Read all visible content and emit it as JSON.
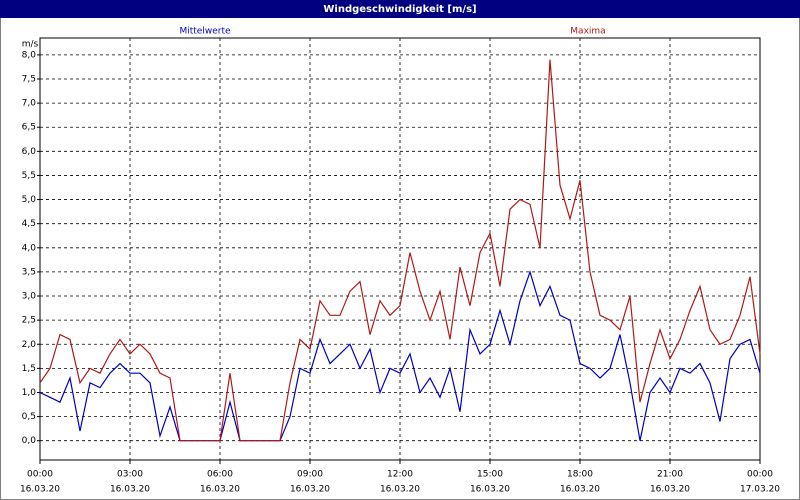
{
  "chart_data": {
    "type": "line",
    "title": "Windgeschwindigkeit [m/s]",
    "y_unit": "m/s",
    "x": [
      0,
      20,
      40,
      60,
      80,
      100,
      120,
      140,
      160,
      180,
      200,
      220,
      240,
      260,
      280,
      300,
      320,
      340,
      360,
      380,
      400,
      420,
      440,
      460,
      480,
      500,
      520,
      540,
      560,
      580,
      600,
      620,
      640,
      660,
      680,
      700,
      720,
      740,
      760,
      780,
      800,
      820,
      840,
      860,
      880,
      900,
      920,
      940,
      960,
      980,
      1000,
      1020,
      1040,
      1060,
      1080,
      1100,
      1120,
      1140,
      1160,
      1180,
      1200,
      1220,
      1240,
      1260,
      1280,
      1300,
      1320,
      1340,
      1360,
      1380,
      1400,
      1420,
      1440
    ],
    "series": [
      {
        "name": "Mittelwerte",
        "color": "#0000c0",
        "values": [
          1.0,
          0.9,
          0.8,
          1.3,
          0.2,
          1.2,
          1.1,
          1.4,
          1.6,
          1.4,
          1.4,
          1.2,
          0.1,
          0.7,
          0,
          0,
          0,
          0,
          0,
          0.8,
          0,
          0,
          0,
          0,
          0,
          0.5,
          1.5,
          1.4,
          2.1,
          1.6,
          1.8,
          2.0,
          1.5,
          1.9,
          1.0,
          1.5,
          1.4,
          1.8,
          1.0,
          1.3,
          0.9,
          1.5,
          0.6,
          2.3,
          1.8,
          2.0,
          2.7,
          2.0,
          2.9,
          3.5,
          2.8,
          3.2,
          2.6,
          2.5,
          1.6,
          1.5,
          1.3,
          1.5,
          2.2,
          1.2,
          0,
          1.0,
          1.3,
          1.0,
          1.5,
          1.4,
          1.6,
          1.2,
          0.4,
          1.7,
          2.0,
          2.1,
          1.4
        ]
      },
      {
        "name": "Maxima",
        "color": "#b01818",
        "values": [
          1.2,
          1.5,
          2.2,
          2.1,
          1.2,
          1.5,
          1.4,
          1.8,
          2.1,
          1.8,
          2.0,
          1.8,
          1.4,
          1.3,
          0,
          0,
          0,
          0,
          0,
          1.4,
          0,
          0,
          0,
          0,
          0,
          1.2,
          2.1,
          1.9,
          2.9,
          2.6,
          2.6,
          3.1,
          3.3,
          2.2,
          2.9,
          2.6,
          2.8,
          3.9,
          3.1,
          2.5,
          3.1,
          2.1,
          3.6,
          2.8,
          3.9,
          4.3,
          3.2,
          4.8,
          5.0,
          4.9,
          4.0,
          7.9,
          5.3,
          4.6,
          5.4,
          3.5,
          2.6,
          2.5,
          2.3,
          3.0,
          0.8,
          1.6,
          2.3,
          1.7,
          2.1,
          2.7,
          3.2,
          2.3,
          2.0,
          2.1,
          2.6,
          3.4,
          1.8
        ]
      }
    ],
    "xlim": [
      0,
      1440
    ],
    "xticks": [
      {
        "value": 0,
        "label": "00:00"
      },
      {
        "value": 180,
        "label": "03:00"
      },
      {
        "value": 360,
        "label": "06:00"
      },
      {
        "value": 540,
        "label": "09:00"
      },
      {
        "value": 720,
        "label": "12:00"
      },
      {
        "value": 900,
        "label": "15:00"
      },
      {
        "value": 1080,
        "label": "18:00"
      },
      {
        "value": 1260,
        "label": "21:00"
      },
      {
        "value": 1440,
        "label": "00:00"
      }
    ],
    "xtick_dates": [
      "16.03.20",
      "16.03.20",
      "16.03.20",
      "16.03.20",
      "16.03.20",
      "16.03.20",
      "16.03.20",
      "16.03.20",
      "17.03.20"
    ],
    "ylim": [
      -0.4,
      8.35
    ],
    "yticks": [
      {
        "value": 0,
        "label": "0,0"
      },
      {
        "value": 0.5,
        "label": "0,5"
      },
      {
        "value": 1,
        "label": "1,0"
      },
      {
        "value": 1.5,
        "label": "1,5"
      },
      {
        "value": 2,
        "label": "2,0"
      },
      {
        "value": 2.5,
        "label": "2,5"
      },
      {
        "value": 3,
        "label": "3,0"
      },
      {
        "value": 3.5,
        "label": "3,5"
      },
      {
        "value": 4,
        "label": "4,0"
      },
      {
        "value": 4.5,
        "label": "4,5"
      },
      {
        "value": 5,
        "label": "5,0"
      },
      {
        "value": 5.5,
        "label": "5,5"
      },
      {
        "value": 6,
        "label": "6,0"
      },
      {
        "value": 6.5,
        "label": "6,5"
      },
      {
        "value": 7,
        "label": "7,0"
      },
      {
        "value": 7.5,
        "label": "7,5"
      },
      {
        "value": 8,
        "label": "8,0"
      }
    ],
    "grid": true
  }
}
